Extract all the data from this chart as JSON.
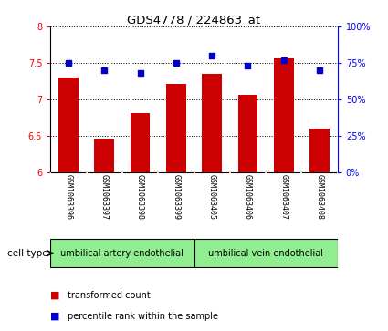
{
  "title": "GDS4778 / 224863_at",
  "samples": [
    "GSM1063396",
    "GSM1063397",
    "GSM1063398",
    "GSM1063399",
    "GSM1063405",
    "GSM1063406",
    "GSM1063407",
    "GSM1063408"
  ],
  "transformed_count": [
    7.3,
    6.47,
    6.82,
    7.22,
    7.35,
    7.06,
    7.57,
    6.6
  ],
  "percentile_rank": [
    75,
    70,
    68,
    75,
    80,
    73,
    77,
    70
  ],
  "bar_color": "#cc0000",
  "dot_color": "#0000cc",
  "ylim_left": [
    6,
    8
  ],
  "ylim_right": [
    0,
    100
  ],
  "yticks_left": [
    6,
    6.5,
    7,
    7.5,
    8
  ],
  "yticks_right": [
    0,
    25,
    50,
    75,
    100
  ],
  "groups": [
    {
      "label": "umbilical artery endothelial",
      "color": "#90ee90",
      "start": 0,
      "end": 3
    },
    {
      "label": "umbilical vein endothelial",
      "color": "#90ee90",
      "start": 4,
      "end": 7
    }
  ],
  "cell_type_label": "cell type",
  "legend_bar_label": "transformed count",
  "legend_dot_label": "percentile rank within the sample",
  "background_color": "#ffffff",
  "tick_area_color": "#c8c8c8"
}
